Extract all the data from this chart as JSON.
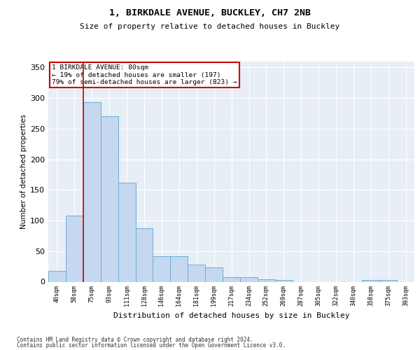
{
  "title1": "1, BIRKDALE AVENUE, BUCKLEY, CH7 2NB",
  "title2": "Size of property relative to detached houses in Buckley",
  "xlabel": "Distribution of detached houses by size in Buckley",
  "ylabel": "Number of detached properties",
  "bar_labels": [
    "40sqm",
    "58sqm",
    "75sqm",
    "93sqm",
    "111sqm",
    "128sqm",
    "146sqm",
    "164sqm",
    "181sqm",
    "199sqm",
    "217sqm",
    "234sqm",
    "252sqm",
    "269sqm",
    "287sqm",
    "305sqm",
    "322sqm",
    "340sqm",
    "358sqm",
    "375sqm",
    "393sqm"
  ],
  "bar_values": [
    18,
    108,
    293,
    270,
    162,
    87,
    42,
    42,
    28,
    23,
    8,
    8,
    4,
    3,
    0,
    0,
    0,
    0,
    3,
    3,
    0
  ],
  "bar_color": "#c5d8f0",
  "bar_edgecolor": "#6baed6",
  "annotation_line1": "1 BIRKDALE AVENUE: 80sqm",
  "annotation_line2": "← 19% of detached houses are smaller (197)",
  "annotation_line3": "79% of semi-detached houses are larger (823) →",
  "annotation_box_facecolor": "white",
  "annotation_box_edgecolor": "#cc0000",
  "vline_color": "#cc0000",
  "vline_x_index": 2,
  "background_color": "#e8eef6",
  "grid_color": "white",
  "footer1": "Contains HM Land Registry data © Crown copyright and database right 2024.",
  "footer2": "Contains public sector information licensed under the Open Government Licence v3.0.",
  "ylim": [
    0,
    360
  ],
  "yticks": [
    0,
    50,
    100,
    150,
    200,
    250,
    300,
    350
  ]
}
